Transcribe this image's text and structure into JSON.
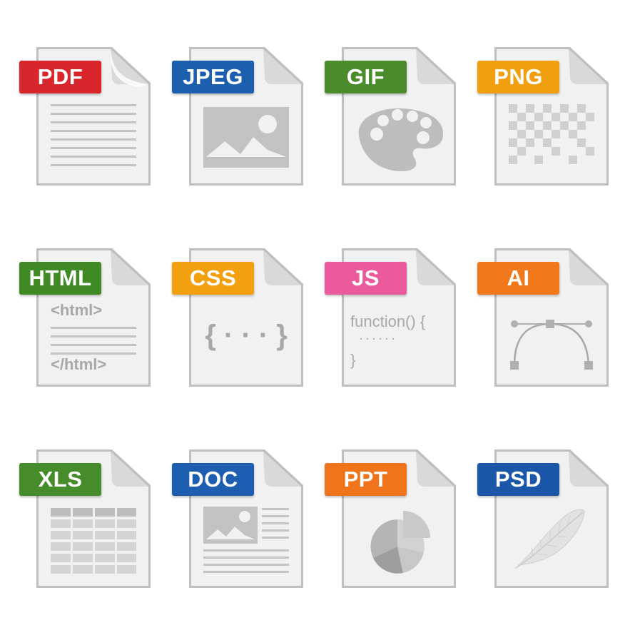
{
  "icons": [
    {
      "id": "pdf",
      "label": "PDF",
      "color": "#d9262c",
      "icon": "lines-icon"
    },
    {
      "id": "jpeg",
      "label": "JPEG",
      "color": "#1c5fae",
      "icon": "image-icon"
    },
    {
      "id": "gif",
      "label": "GIF",
      "color": "#4a8b2c",
      "icon": "palette-icon"
    },
    {
      "id": "png",
      "label": "PNG",
      "color": "#f0a00f",
      "icon": "checkerboard-icon"
    },
    {
      "id": "html",
      "label": "HTML",
      "color": "#3f8a24",
      "icon": "html-tags-icon",
      "open_tag": "<html>",
      "close_tag": "</html>"
    },
    {
      "id": "css",
      "label": "CSS",
      "color": "#f29f10",
      "icon": "braces-icon",
      "braces": "{ · · · }"
    },
    {
      "id": "js",
      "label": "JS",
      "color": "#ea5a9c",
      "icon": "function-icon",
      "line1": "function() {",
      "line2": "······",
      "line3": "}"
    },
    {
      "id": "ai",
      "label": "AI",
      "color": "#f2791b",
      "icon": "bezier-icon"
    },
    {
      "id": "xls",
      "label": "XLS",
      "color": "#468c2a",
      "icon": "spreadsheet-icon"
    },
    {
      "id": "doc",
      "label": "DOC",
      "color": "#1d5eb0",
      "icon": "document-image-icon"
    },
    {
      "id": "ppt",
      "label": "PPT",
      "color": "#f0741b",
      "icon": "pie-chart-icon"
    },
    {
      "id": "psd",
      "label": "PSD",
      "color": "#1b57a8",
      "icon": "feather-icon"
    }
  ]
}
